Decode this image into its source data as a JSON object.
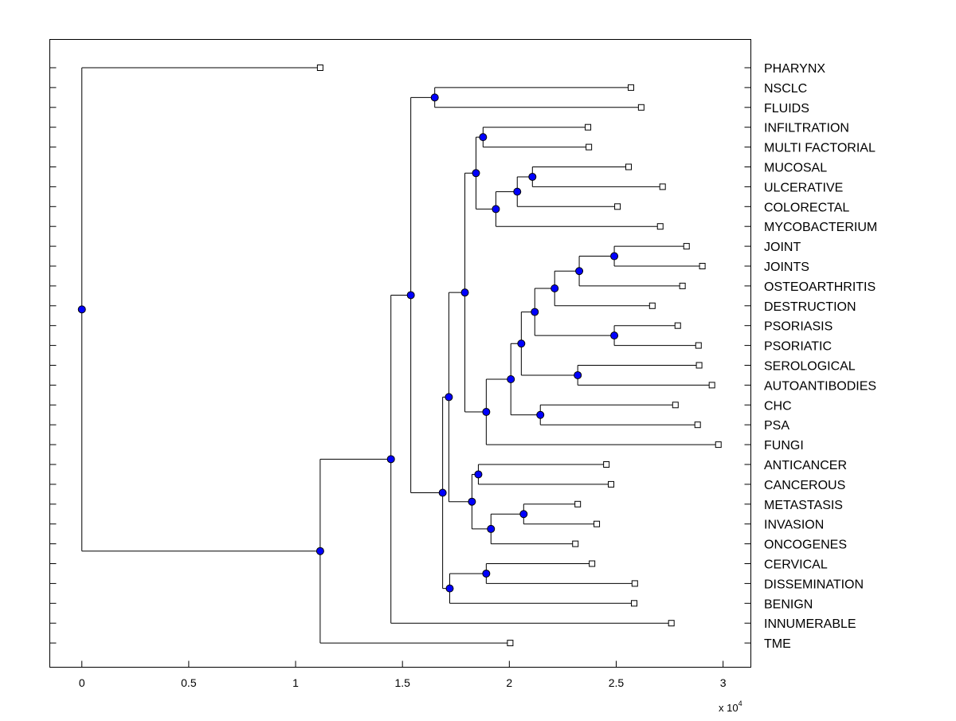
{
  "chart_data": {
    "type": "dendrogram",
    "orientation": "left-to-right",
    "xlim": [
      -0.15,
      3.13
    ],
    "x_ticks": [
      "0",
      "0.5",
      "1",
      "1.5",
      "2",
      "2.5",
      "3"
    ],
    "x_tick_values": [
      0,
      0.5,
      1,
      1.5,
      2,
      2.5,
      3
    ],
    "x_multiplier": "x 10",
    "x_multiplier_exp": "4",
    "grid": false,
    "colors": {
      "node": "#0000ff",
      "line": "#000000",
      "leaf": "#ffffff"
    },
    "tree": {
      "h": 0,
      "c": [
        {
          "label": "PHARYNX",
          "h": 1.115
        },
        {
          "h": 1.115,
          "c": [
            {
              "h": 1.446,
              "c": [
                {
                  "h": 1.539,
                  "c": [
                    {
                      "h": 1.651,
                      "c": [
                        {
                          "label": "NSCLC",
                          "h": 2.569
                        },
                        {
                          "label": "FLUIDS",
                          "h": 2.617
                        }
                      ]
                    },
                    {
                      "h": 1.688,
                      "c": [
                        {
                          "h": 1.717,
                          "c": [
                            {
                              "h": 1.792,
                              "c": [
                                {
                                  "h": 1.844,
                                  "c": [
                                    {
                                      "h": 1.877,
                                      "c": [
                                        {
                                          "label": "INFILTRATION",
                                          "h": 2.368
                                        },
                                        {
                                          "label": "MULTI FACTORIAL",
                                          "h": 2.372
                                        }
                                      ]
                                    },
                                    {
                                      "h": 1.937,
                                      "c": [
                                        {
                                          "h": 2.037,
                                          "c": [
                                            {
                                              "h": 2.108,
                                              "c": [
                                                {
                                                  "label": "MUCOSAL",
                                                  "h": 2.558
                                                },
                                                {
                                                  "label": "ULCERATIVE",
                                                  "h": 2.717
                                                }
                                              ]
                                            },
                                            {
                                              "label": "COLORECTAL",
                                              "h": 2.506
                                            }
                                          ]
                                        },
                                        {
                                          "label": "MYCOBACTERIUM",
                                          "h": 2.706
                                        }
                                      ]
                                    }
                                  ]
                                },
                                {
                                  "h": 1.892,
                                  "c": [
                                    {
                                      "h": 2.007,
                                      "c": [
                                        {
                                          "h": 2.056,
                                          "c": [
                                            {
                                              "h": 2.119,
                                              "c": [
                                                {
                                                  "h": 2.212,
                                                  "c": [
                                                    {
                                                      "h": 2.327,
                                                      "c": [
                                                        {
                                                          "h": 2.491,
                                                          "c": [
                                                            {
                                                              "label": "JOINT",
                                                              "h": 2.829
                                                            },
                                                            {
                                                              "label": "JOINTS",
                                                              "h": 2.903
                                                            }
                                                          ]
                                                        },
                                                        {
                                                          "label": "OSTEOARTHRITIS",
                                                          "h": 2.81
                                                        }
                                                      ]
                                                    },
                                                    {
                                                      "label": "DESTRUCTION",
                                                      "h": 2.669
                                                    }
                                                  ]
                                                },
                                                {
                                                  "h": 2.491,
                                                  "c": [
                                                    {
                                                      "label": "PSORIASIS",
                                                      "h": 2.788
                                                    },
                                                    {
                                                      "label": "PSORIATIC",
                                                      "h": 2.885
                                                    }
                                                  ]
                                                }
                                              ]
                                            },
                                            {
                                              "h": 2.32,
                                              "c": [
                                                {
                                                  "label": "SEROLOGICAL",
                                                  "h": 2.888
                                                },
                                                {
                                                  "label": "AUTOANTIBODIES",
                                                  "h": 2.948
                                                }
                                              ]
                                            }
                                          ]
                                        },
                                        {
                                          "h": 2.145,
                                          "c": [
                                            {
                                              "label": "CHC",
                                              "h": 2.777
                                            },
                                            {
                                              "label": "PSA",
                                              "h": 2.881
                                            }
                                          ]
                                        }
                                      ]
                                    },
                                    {
                                      "label": "FUNGI",
                                      "h": 2.978
                                    }
                                  ]
                                }
                              ]
                            },
                            {
                              "h": 1.825,
                              "c": [
                                {
                                  "h": 1.855,
                                  "c": [
                                    {
                                      "label": "ANTICANCER",
                                      "h": 2.454
                                    },
                                    {
                                      "label": "CANCEROUS",
                                      "h": 2.476
                                    }
                                  ]
                                },
                                {
                                  "h": 1.914,
                                  "c": [
                                    {
                                      "h": 2.067,
                                      "c": [
                                        {
                                          "label": "METASTASIS",
                                          "h": 2.32
                                        },
                                        {
                                          "label": "INVASION",
                                          "h": 2.409
                                        }
                                      ]
                                    },
                                    {
                                      "label": "ONCOGENES",
                                      "h": 2.309
                                    }
                                  ]
                                }
                              ]
                            }
                          ]
                        },
                        {
                          "h": 1.721,
                          "c": [
                            {
                              "h": 1.892,
                              "c": [
                                {
                                  "label": "CERVICAL",
                                  "h": 2.387
                                },
                                {
                                  "label": "DISSEMINATION",
                                  "h": 2.587
                                }
                              ]
                            },
                            {
                              "label": "BENIGN",
                              "h": 2.584
                            }
                          ]
                        }
                      ]
                    }
                  ]
                },
                {
                  "label": "INNUMERABLE",
                  "h": 2.758
                }
              ]
            },
            {
              "label": "TME",
              "h": 2.004
            }
          ]
        }
      ]
    }
  }
}
